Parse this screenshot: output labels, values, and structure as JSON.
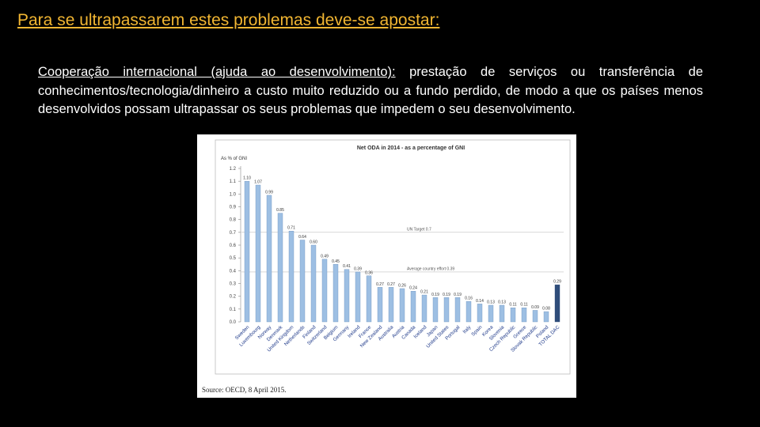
{
  "slide": {
    "title": "Para se ultrapassarem estes problemas deve-se apostar:",
    "paragraph_lead": "Cooperação internacional (ajuda ao desenvolvimento):",
    "paragraph_body": " prestação de serviços ou transferência de conhecimentos/tecnologia/dinheiro a custo muito reduzido ou a fundo perdido, de modo a que os países menos desenvolvidos possam ultrapassar os seus problemas que impedem o seu desenvolvimento."
  },
  "colors": {
    "background": "#000000",
    "title": "#f2b632",
    "text": "#ffffff",
    "bar": "#9dbfe3",
    "bar_outline": "#6f94c0",
    "total_bar": "#2f4d7a",
    "chart_background": "#ffffff"
  },
  "chart_data": {
    "type": "bar",
    "title": "Net ODA in 2014 - as a percentage of GNI",
    "ylabel": "As % of GNI",
    "xlabel": "",
    "ylim": [
      0,
      1.2
    ],
    "y_ticks": [
      "0.0",
      "0.1",
      "0.2",
      "0.3",
      "0.4",
      "0.5",
      "0.6",
      "0.7",
      "0.8",
      "0.9",
      "1.0",
      "1.1",
      "1.2"
    ],
    "grid": false,
    "categories": [
      "Sweden",
      "Luxembourg",
      "Norway",
      "Denmark",
      "United Kingdom",
      "Netherlands",
      "Finland",
      "Switzerland",
      "Belgium",
      "Germany",
      "Ireland",
      "France",
      "New Zealand",
      "Australia",
      "Austria",
      "Canada",
      "Iceland",
      "Japan",
      "United States",
      "Portugal",
      "Italy",
      "Spain",
      "Korea",
      "Slovenia",
      "Czech Republic",
      "Greece",
      "Slovak Republic",
      "Poland",
      "TOTAL DAC"
    ],
    "values": [
      1.1,
      1.07,
      0.99,
      0.85,
      0.71,
      0.64,
      0.6,
      0.49,
      0.45,
      0.41,
      0.39,
      0.36,
      0.27,
      0.27,
      0.26,
      0.24,
      0.21,
      0.19,
      0.19,
      0.19,
      0.16,
      0.14,
      0.13,
      0.13,
      0.11,
      0.11,
      0.09,
      0.08,
      0.29
    ],
    "value_labels": [
      "1.10",
      "1.07",
      "0.99",
      "0.85",
      "0.71",
      "0.64",
      "0.60",
      "0.49",
      "0.45",
      "0.41",
      "0.39",
      "0.36",
      "0.27",
      "0.27",
      "0.26",
      "0.24",
      "0.21",
      "0.19",
      "0.19",
      "0.19",
      "0.16",
      "0.14",
      "0.13",
      "0.13",
      "0.11",
      "0.11",
      "0.09",
      "0.08",
      "0.29"
    ],
    "reference_lines": [
      {
        "label": "UN Target 0.7",
        "value": 0.7
      },
      {
        "label": "Average country effort 0.39",
        "value": 0.39
      }
    ],
    "source": "Source: OECD, 8 April 2015."
  }
}
